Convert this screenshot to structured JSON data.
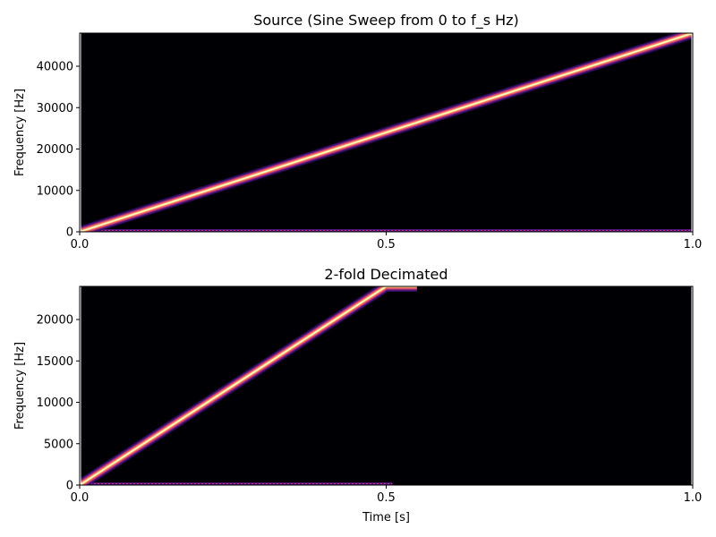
{
  "chart_data": [
    {
      "type": "heatmap",
      "title": "Source (Sine Sweep from 0 to f_s Hz)",
      "xlabel": "",
      "ylabel": "Frequency [Hz]",
      "xlim": [
        0,
        1.0
      ],
      "ylim": [
        0,
        48000
      ],
      "xticks": [
        0.0,
        0.5,
        1.0
      ],
      "xtick_labels": [
        "0.0",
        "0.5",
        "1.0"
      ],
      "yticks": [
        0,
        10000,
        20000,
        30000,
        40000
      ],
      "ytick_labels": [
        "0",
        "10000",
        "20000",
        "30000",
        "40000"
      ],
      "colormap": "magma",
      "background_color": "#000004",
      "sweep": {
        "t": [
          0.0,
          1.0
        ],
        "freq": [
          0,
          48000
        ]
      },
      "dc_line": {
        "t": [
          0.0,
          1.0
        ],
        "freq": 0
      }
    },
    {
      "type": "heatmap",
      "title": "2-fold Decimated",
      "xlabel": "Time [s]",
      "ylabel": "Frequency [Hz]",
      "xlim": [
        0,
        1.0
      ],
      "ylim": [
        0,
        24000
      ],
      "xticks": [
        0.0,
        0.5,
        1.0
      ],
      "xtick_labels": [
        "0.0",
        "0.5",
        "1.0"
      ],
      "yticks": [
        0,
        5000,
        10000,
        15000,
        20000
      ],
      "ytick_labels": [
        "0",
        "5000",
        "10000",
        "15000",
        "20000"
      ],
      "colormap": "magma",
      "background_color": "#000004",
      "sweep": {
        "t": [
          0.0,
          0.5
        ],
        "freq": [
          0,
          24000
        ]
      },
      "top_edge": {
        "t": [
          0.5,
          0.55
        ],
        "freq": 24000
      },
      "dc_line": {
        "t": [
          0.0,
          0.51
        ],
        "freq": 0
      }
    }
  ]
}
